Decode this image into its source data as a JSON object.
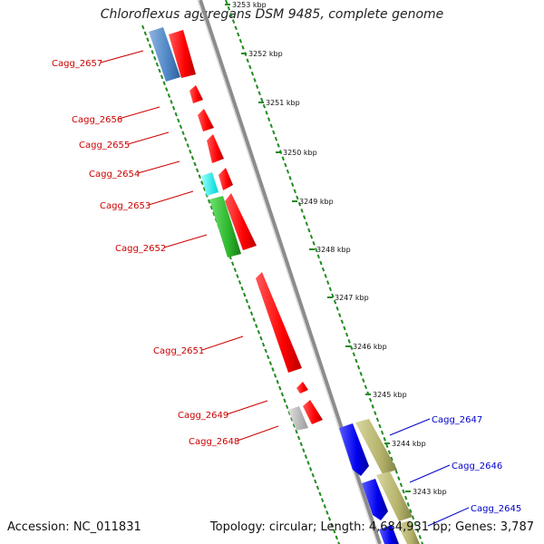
{
  "title": "Chloroflexus aggregans DSM 9485, complete genome",
  "accession": "Accession: NC_011831",
  "topology": "Topology: circular; Length: 4,684,931 bp; Genes: 3,787",
  "ticks": [
    "3253 kbp",
    "3252 kbp",
    "3251 kbp",
    "3250 kbp",
    "3249 kbp",
    "3248 kbp",
    "3247 kbp",
    "3246 kbp",
    "3245 kbp",
    "3244 kbp",
    "3243 kbp"
  ],
  "genes_reverse": [
    {
      "label": "Cagg_2657",
      "color": "#cc0000"
    },
    {
      "label": "Cagg_2656",
      "color": "#cc0000"
    },
    {
      "label": "Cagg_2655",
      "color": "#cc0000"
    },
    {
      "label": "Cagg_2654",
      "color": "#cc0000"
    },
    {
      "label": "Cagg_2653",
      "color": "#cc0000"
    },
    {
      "label": "Cagg_2652",
      "color": "#cc0000"
    },
    {
      "label": "Cagg_2651",
      "color": "#cc0000"
    },
    {
      "label": "Cagg_2649",
      "color": "#cc0000"
    },
    {
      "label": "Cagg_2648",
      "color": "#cc0000"
    }
  ],
  "genes_forward": [
    {
      "label": "Cagg_2647",
      "color": "#0000cc"
    },
    {
      "label": "Cagg_2646",
      "color": "#0000cc"
    },
    {
      "label": "Cagg_2645",
      "color": "#0000cc"
    }
  ],
  "colors": {
    "gene_red": "#ff0000",
    "gene_blue": "#0000ee",
    "cog_steelblue": "#4f86c6",
    "cog_cyan": "#00ffff",
    "cog_green": "#2db82d",
    "cog_olive": "#b5b36b",
    "cog_gray": "#bfbfbf",
    "backbone": "#8c8c8c",
    "dots": "#228b22"
  }
}
